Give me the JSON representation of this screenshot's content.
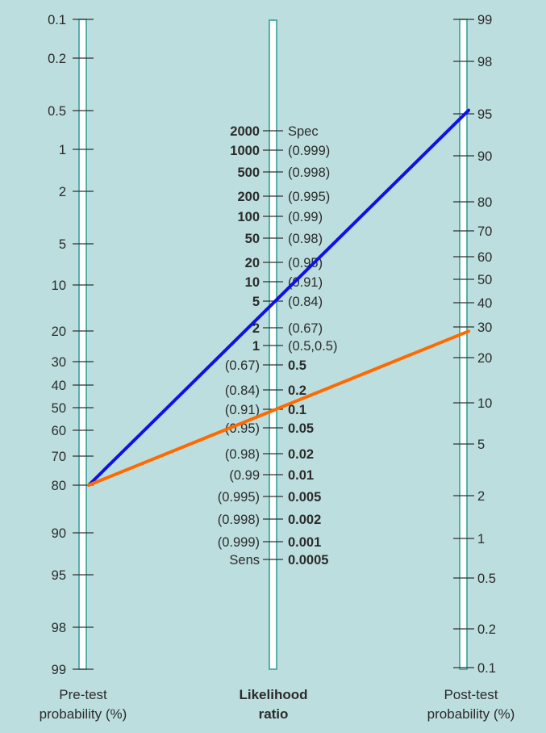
{
  "colors": {
    "background": "#bddede",
    "axis_fill": "#ffffff",
    "axis_border": "#2a9c96",
    "line_1": "#1010e8",
    "line_2": "#ff6a00"
  },
  "pretest_axis": {
    "ticks": [
      "0.1",
      "0.2",
      "0.5",
      "1",
      "2",
      "5",
      "10",
      "20",
      "30",
      "40",
      "50",
      "60",
      "70",
      "80",
      "90",
      "95",
      "98",
      "99"
    ],
    "caption_line1": "Pre-test",
    "caption_line2": "probability (%)"
  },
  "likelihood_axis": {
    "left_labels": [
      "2000",
      "1000",
      "500",
      "200",
      "100",
      "50",
      "20",
      "10",
      "5",
      "2",
      "1",
      "(0.67)",
      "(0.84)",
      "(0.91)",
      "(0.95)",
      "(0.98)",
      "(0.99",
      "(0.995)",
      "(0.998)",
      "(0.999)",
      "Sens"
    ],
    "right_labels": [
      "Spec",
      "(0.999)",
      "(0.998)",
      "(0.995)",
      "(0.99)",
      "(0.98)",
      "(0.95)",
      "(0.91)",
      "(0.84)",
      "(0.67)",
      "(0.5,0.5)",
      "0.5",
      "0.2",
      "0.1",
      "0.05",
      "0.02",
      "0.01",
      "0.005",
      "0.002",
      "0.001",
      "0.0005"
    ],
    "caption_line1": "Likelihood",
    "caption_line2": "ratio"
  },
  "posttest_axis": {
    "ticks": [
      "99",
      "98",
      "95",
      "90",
      "80",
      "70",
      "60",
      "50",
      "40",
      "30",
      "20",
      "10",
      "5",
      "2",
      "1",
      "0.5",
      "0.2",
      "0.1"
    ],
    "caption_line1": "Post-test",
    "caption_line2": "probability (%)"
  },
  "lines": [
    {
      "color": "#1010e8",
      "pretest_percent": 80,
      "likelihood_ratio": 5,
      "posttest_percent": 95.2
    },
    {
      "color": "#ff6a00",
      "pretest_percent": 80,
      "likelihood_ratio": 0.1,
      "posttest_percent": 28.6
    }
  ]
}
